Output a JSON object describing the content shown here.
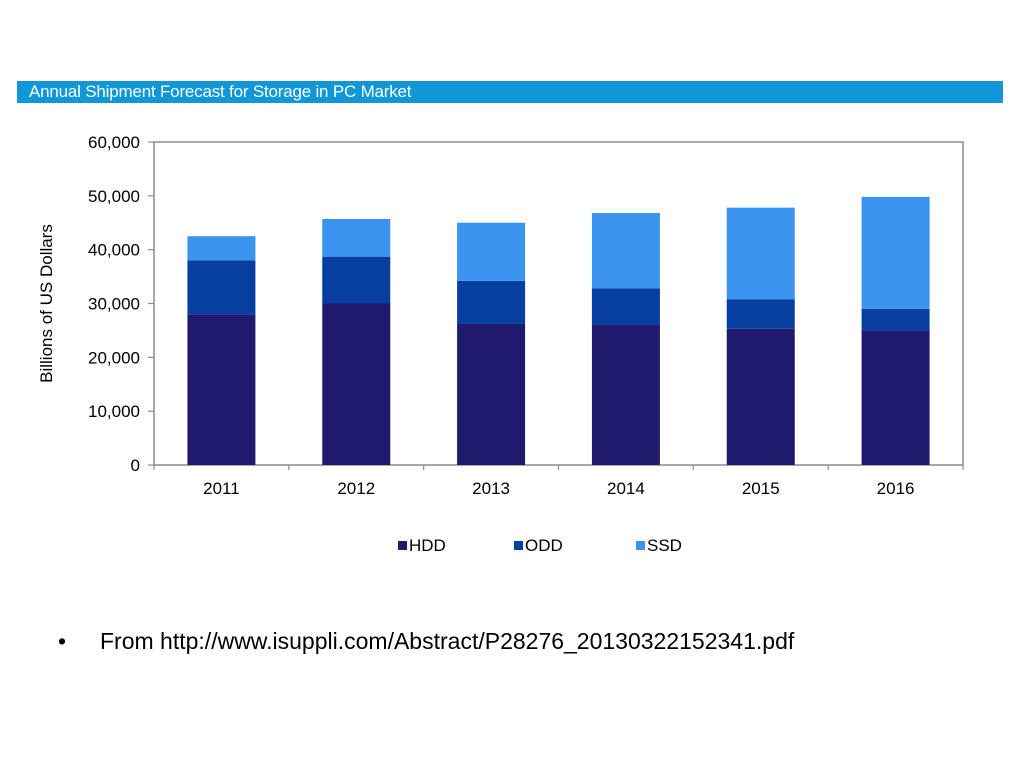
{
  "chart_data": {
    "type": "bar",
    "stacked": true,
    "title": "Annual Shipment Forecast for Storage in PC Market",
    "xlabel": "",
    "ylabel": "Billions of US Dollars",
    "categories": [
      "2011",
      "2012",
      "2013",
      "2014",
      "2015",
      "2016"
    ],
    "ylim": [
      0,
      60000
    ],
    "yticks": [
      0,
      10000,
      20000,
      30000,
      40000,
      50000,
      60000
    ],
    "ytick_labels": [
      "0",
      "10,000",
      "20,000",
      "30,000",
      "40,000",
      "50,000",
      "60,000"
    ],
    "grid": false,
    "legend_position": "bottom",
    "series": [
      {
        "name": "HDD",
        "color": "#1f1a6e",
        "values": [
          28000,
          30000,
          26200,
          26000,
          25300,
          25000
        ]
      },
      {
        "name": "ODD",
        "color": "#063fa0",
        "values": [
          10000,
          8700,
          8000,
          6800,
          5500,
          4000
        ]
      },
      {
        "name": "SSD",
        "color": "#3a94ef",
        "values": [
          4500,
          7000,
          10800,
          14000,
          17000,
          20800
        ]
      }
    ]
  },
  "footer": {
    "bullet": "•",
    "source_text": "From http://www.isuppli.com/Abstract/P28276_20130322152341.pdf"
  }
}
